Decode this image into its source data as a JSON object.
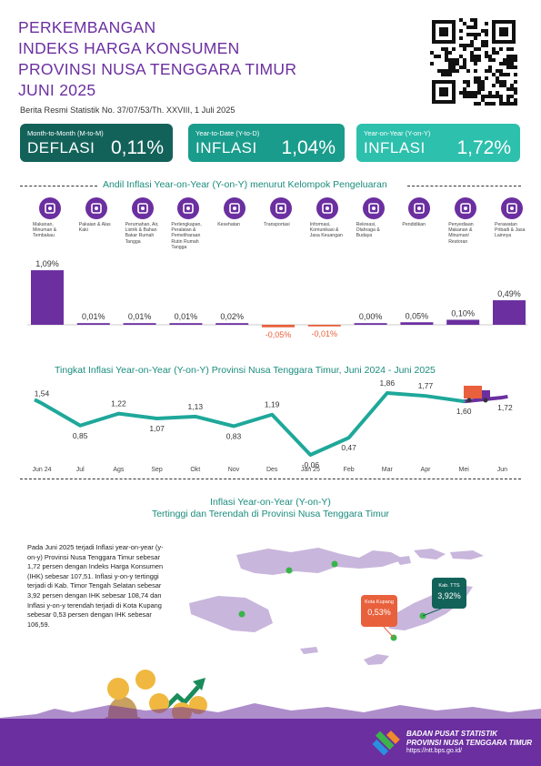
{
  "header": {
    "title_lines": [
      "PERKEMBANGAN",
      "INDEKS HARGA KONSUMEN",
      "PROVINSI NUSA TENGGARA TIMUR",
      "JUNI 2025"
    ],
    "brs": "Berita Resmi Statistik No. 37/07/53/Th. XXVIII, 1 Juli 2025"
  },
  "summary": [
    {
      "label": "Month-to-Month (M-to-M)",
      "kind": "DEFLASI",
      "value": "0,11%",
      "color": "#13625a"
    },
    {
      "label": "Year-to-Date (Y-to-D)",
      "kind": "INFLASI",
      "value": "1,04%",
      "color": "#1a9c8c"
    },
    {
      "label": "Year-on-Year (Y-on-Y)",
      "kind": "INFLASI",
      "value": "1,72%",
      "color": "#2dc0ad"
    }
  ],
  "andil": {
    "title": "Andil Inflasi Year-on-Year (Y-on-Y) menurut Kelompok Pengeluaran",
    "categories": [
      {
        "label": "Makanan, Minuman & Tembakau",
        "icon": "food-icon"
      },
      {
        "label": "Pakaian & Alas Kaki",
        "icon": "clothing-icon"
      },
      {
        "label": "Perumahan, Air, Listrik & Bahan Bakar Rumah Tangga",
        "icon": "house-icon"
      },
      {
        "label": "Perlengkapan, Peralatan & Pemeliharaan Rutin Rumah Tangga",
        "icon": "appliance-icon"
      },
      {
        "label": "Kesehatan",
        "icon": "health-icon"
      },
      {
        "label": "Transportasi",
        "icon": "plane-icon"
      },
      {
        "label": "Informasi, Komunikasi & Jasa Keuangan",
        "icon": "phone-icon"
      },
      {
        "label": "Rekreasi, Olahraga & Budaya",
        "icon": "sport-icon"
      },
      {
        "label": "Pendidikan",
        "icon": "graduation-icon"
      },
      {
        "label": "Penyediaan Makanan & Minuman/ Restoran",
        "icon": "restaurant-icon"
      },
      {
        "label": "Perawatan Pribadi & Jasa Lainnya",
        "icon": "tools-icon"
      }
    ]
  },
  "chart_data": [
    {
      "type": "bar",
      "categories": [
        "Makanan, Minuman & Tembakau",
        "Pakaian & Alas Kaki",
        "Perumahan, Air, Listrik & Bahan Bakar Rumah Tangga",
        "Perlengkapan, Peralatan & Pemeliharaan Rutin Rumah Tangga",
        "Kesehatan",
        "Transportasi",
        "Informasi, Komunikasi & Jasa Keuangan",
        "Rekreasi, Olahraga & Budaya",
        "Pendidikan",
        "Penyediaan Makanan & Minuman/ Restoran",
        "Perawatan Pribadi & Jasa Lainnya"
      ],
      "values": [
        1.09,
        0.01,
        0.01,
        0.01,
        0.02,
        -0.05,
        -0.01,
        0.0,
        0.05,
        0.1,
        0.49
      ],
      "labels": [
        "1,09%",
        "0,01%",
        "0,01%",
        "0,01%",
        "0,02%",
        "-0,05%",
        "-0,01%",
        "0,00%",
        "0,05%",
        "0,10%",
        "0,49%"
      ],
      "title": "Andil Inflasi Year-on-Year (Y-on-Y) menurut Kelompok Pengeluaran",
      "colors": {
        "positive": "#6b2fa0",
        "negative": "#e8613c"
      }
    },
    {
      "type": "line",
      "title": "Tingkat Inflasi Year-on-Year (Y-on-Y) Provinsi Nusa Tenggara Timur, Juni 2024 - Juni 2025",
      "x": [
        "Jun 24",
        "Jul",
        "Ags",
        "Sep",
        "Okt",
        "Nov",
        "Des",
        "Jan 25",
        "Feb",
        "Mar",
        "Apr",
        "Mei",
        "Jun"
      ],
      "values": [
        1.54,
        0.85,
        1.22,
        1.07,
        1.13,
        0.83,
        1.19,
        -0.06,
        0.47,
        1.86,
        1.77,
        1.6,
        1.72
      ],
      "labels": [
        "1,54",
        "0,85",
        "1,22",
        "1,07",
        "1,13",
        "0,83",
        "1,19",
        "-0,06",
        "0,47",
        "1,86",
        "1,77",
        "1,60",
        "1,72"
      ],
      "colors": {
        "teal": "#1ea89a",
        "purple": "#6b2fa0"
      }
    }
  ],
  "map": {
    "title1": "Inflasi Year-on-Year (Y-on-Y)",
    "title2": "Tertinggi dan Terendah di Provinsi Nusa Tenggara Timur",
    "paragraph": "Pada Juni 2025 terjadi Inflasi year-on-year (y-on-y) Provinsi Nusa Tenggara Timur sebesar 1,72 persen dengan Indeks Harga Konsumen (IHK) sebesar 107,51. Inflasi y-on-y tertinggi terjadi di Kab. Timor Tengah Selatan sebesar 3,92 persen dengan IHK sebesar 108,74 dan Inflasi y-on-y terendah terjadi di Kota Kupang sebesar 0,53 persen dengan IHK sebesar 106,59.",
    "kupang": {
      "name": "Kota Kupang",
      "value": "0,53%",
      "color": "#e8613c"
    },
    "tts": {
      "name": "Kab. TTS",
      "value": "3,92%",
      "color": "#13625a"
    }
  },
  "footer": {
    "line1": "BADAN PUSAT STATISTIK",
    "line2": "PROVINSI NUSA TENGGARA TIMUR",
    "url": "https://ntt.bps.go.id/"
  }
}
